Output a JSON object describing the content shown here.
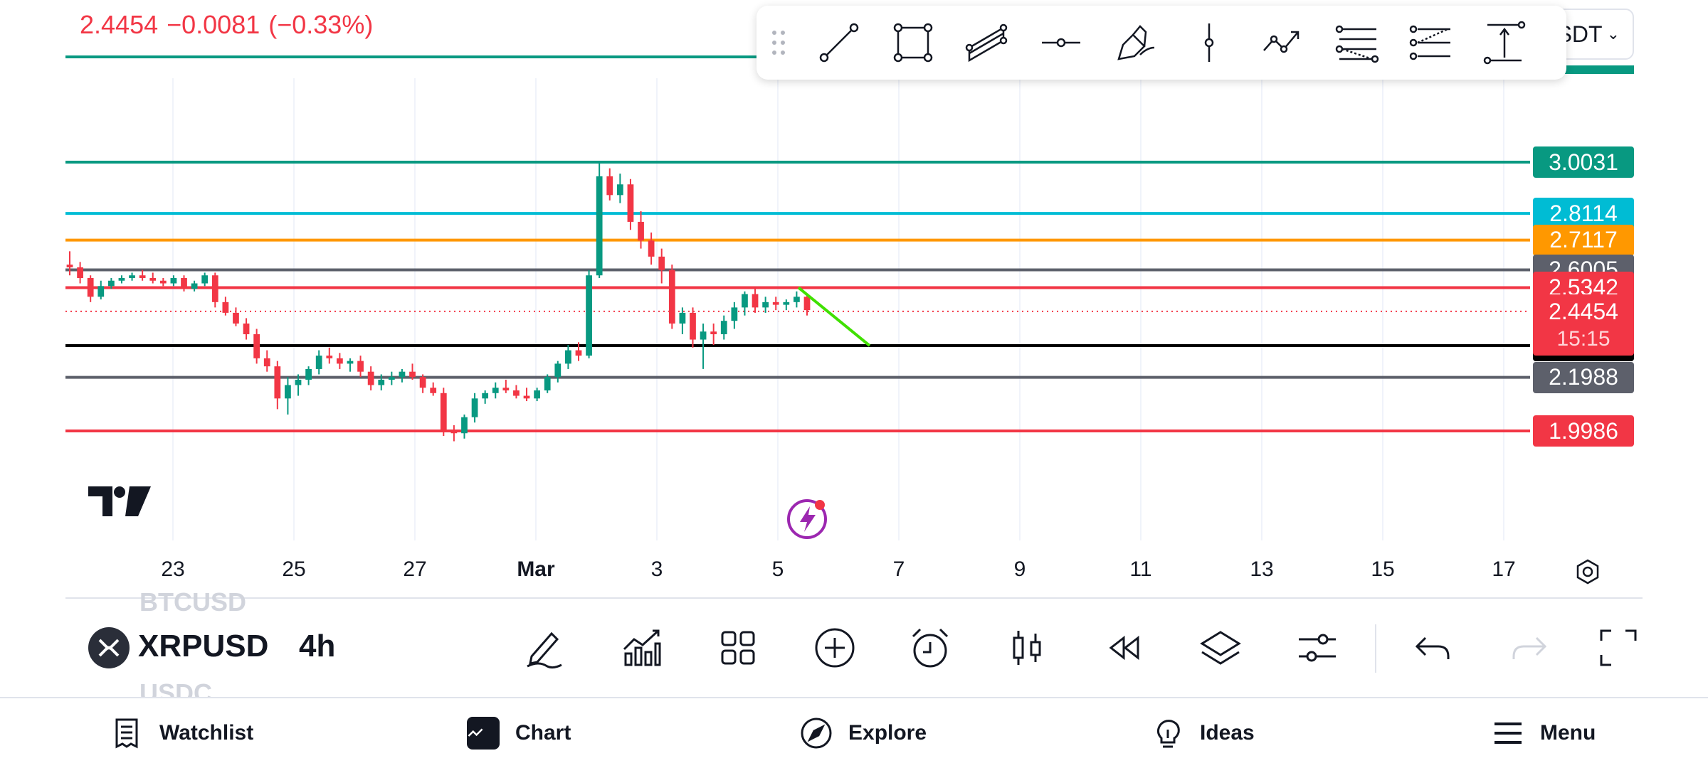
{
  "header": {
    "last_price": "2.4454",
    "change": "−0.0081",
    "change_pct": "(−0.33%)",
    "symbol_pill_text": "SDT",
    "accent_negative": "#f23645",
    "accent_positive": "#089981"
  },
  "drawing_toolbar": {
    "tools": [
      "trend-line-icon",
      "rectangle-icon",
      "parallel-channel-icon",
      "horizontal-ray-icon",
      "brush-icon",
      "vertical-line-icon",
      "path-icon",
      "fib-retracement-icon",
      "fib-extension-icon",
      "long-position-icon"
    ]
  },
  "chart_data": {
    "type": "candlestick",
    "symbol": "XRPUSD",
    "interval": "4h",
    "x_ticks": [
      "23",
      "25",
      "27",
      "Mar",
      "3",
      "5",
      "7",
      "9",
      "11",
      "13",
      "15",
      "17"
    ],
    "ylim": [
      1.85,
      3.1
    ],
    "current_price": "2.4454",
    "countdown": "15:15",
    "levels": [
      {
        "price": "3.0031",
        "value": 3.0031,
        "color": "#089981"
      },
      {
        "price": "2.8114",
        "value": 2.8114,
        "color": "#00bcd4"
      },
      {
        "price": "2.7117",
        "value": 2.7117,
        "color": "#ff9800"
      },
      {
        "price": "2.6005",
        "value": 2.6005,
        "color": "#5d606b"
      },
      {
        "price": "2.5342",
        "value": 2.5342,
        "color": "#f23645"
      },
      {
        "price": "2.3174",
        "value": 2.3174,
        "color": "#000000"
      },
      {
        "price": "2.1988",
        "value": 2.1988,
        "color": "#5d606b"
      },
      {
        "price": "1.9986",
        "value": 1.9986,
        "color": "#f23645"
      }
    ],
    "candles": [
      [
        2.62,
        2.67,
        2.58,
        2.61
      ],
      [
        2.61,
        2.63,
        2.55,
        2.57
      ],
      [
        2.57,
        2.58,
        2.48,
        2.5
      ],
      [
        2.5,
        2.56,
        2.49,
        2.54
      ],
      [
        2.54,
        2.57,
        2.53,
        2.56
      ],
      [
        2.56,
        2.58,
        2.55,
        2.57
      ],
      [
        2.57,
        2.59,
        2.56,
        2.58
      ],
      [
        2.58,
        2.6,
        2.56,
        2.57
      ],
      [
        2.57,
        2.59,
        2.55,
        2.56
      ],
      [
        2.56,
        2.57,
        2.54,
        2.55
      ],
      [
        2.55,
        2.58,
        2.54,
        2.57
      ],
      [
        2.57,
        2.58,
        2.52,
        2.53
      ],
      [
        2.53,
        2.56,
        2.52,
        2.55
      ],
      [
        2.55,
        2.59,
        2.54,
        2.58
      ],
      [
        2.58,
        2.59,
        2.46,
        2.48
      ],
      [
        2.48,
        2.5,
        2.43,
        2.44
      ],
      [
        2.44,
        2.46,
        2.39,
        2.4
      ],
      [
        2.4,
        2.42,
        2.34,
        2.36
      ],
      [
        2.36,
        2.38,
        2.25,
        2.27
      ],
      [
        2.27,
        2.3,
        2.22,
        2.24
      ],
      [
        2.24,
        2.26,
        2.08,
        2.12
      ],
      [
        2.12,
        2.2,
        2.06,
        2.17
      ],
      [
        2.17,
        2.21,
        2.13,
        2.19
      ],
      [
        2.19,
        2.24,
        2.17,
        2.23
      ],
      [
        2.23,
        2.3,
        2.21,
        2.28
      ],
      [
        2.28,
        2.31,
        2.25,
        2.27
      ],
      [
        2.27,
        2.29,
        2.23,
        2.25
      ],
      [
        2.25,
        2.27,
        2.22,
        2.26
      ],
      [
        2.26,
        2.28,
        2.2,
        2.22
      ],
      [
        2.22,
        2.24,
        2.15,
        2.17
      ],
      [
        2.17,
        2.21,
        2.15,
        2.19
      ],
      [
        2.19,
        2.22,
        2.17,
        2.2
      ],
      [
        2.2,
        2.23,
        2.18,
        2.22
      ],
      [
        2.22,
        2.25,
        2.19,
        2.2
      ],
      [
        2.2,
        2.21,
        2.14,
        2.16
      ],
      [
        2.16,
        2.18,
        2.13,
        2.14
      ],
      [
        2.14,
        2.16,
        1.98,
        2.0
      ],
      [
        2.0,
        2.02,
        1.96,
        1.99
      ],
      [
        1.99,
        2.06,
        1.97,
        2.05
      ],
      [
        2.05,
        2.14,
        2.03,
        2.12
      ],
      [
        2.12,
        2.15,
        2.1,
        2.14
      ],
      [
        2.14,
        2.18,
        2.12,
        2.16
      ],
      [
        2.16,
        2.19,
        2.14,
        2.15
      ],
      [
        2.15,
        2.17,
        2.12,
        2.13
      ],
      [
        2.13,
        2.16,
        2.11,
        2.12
      ],
      [
        2.12,
        2.16,
        2.11,
        2.15
      ],
      [
        2.15,
        2.21,
        2.14,
        2.2
      ],
      [
        2.2,
        2.26,
        2.18,
        2.25
      ],
      [
        2.25,
        2.32,
        2.23,
        2.3
      ],
      [
        2.3,
        2.33,
        2.26,
        2.28
      ],
      [
        2.28,
        2.6,
        2.27,
        2.58
      ],
      [
        2.58,
        3.0,
        2.57,
        2.95
      ],
      [
        2.95,
        2.98,
        2.86,
        2.88
      ],
      [
        2.88,
        2.96,
        2.85,
        2.92
      ],
      [
        2.92,
        2.94,
        2.75,
        2.78
      ],
      [
        2.78,
        2.82,
        2.68,
        2.71
      ],
      [
        2.71,
        2.74,
        2.62,
        2.65
      ],
      [
        2.65,
        2.68,
        2.55,
        2.6
      ],
      [
        2.6,
        2.62,
        2.38,
        2.4
      ],
      [
        2.4,
        2.46,
        2.36,
        2.44
      ],
      [
        2.44,
        2.46,
        2.31,
        2.34
      ],
      [
        2.34,
        2.4,
        2.23,
        2.37
      ],
      [
        2.37,
        2.4,
        2.32,
        2.36
      ],
      [
        2.36,
        2.43,
        2.34,
        2.41
      ],
      [
        2.41,
        2.48,
        2.38,
        2.46
      ],
      [
        2.46,
        2.52,
        2.43,
        2.51
      ],
      [
        2.51,
        2.53,
        2.44,
        2.46
      ],
      [
        2.46,
        2.5,
        2.44,
        2.48
      ],
      [
        2.48,
        2.5,
        2.45,
        2.47
      ],
      [
        2.47,
        2.49,
        2.45,
        2.48
      ],
      [
        2.48,
        2.52,
        2.46,
        2.5
      ],
      [
        2.5,
        2.51,
        2.43,
        2.45
      ]
    ],
    "trend_line": {
      "from_date_offset": 0,
      "color": "#40e000"
    }
  },
  "bottom_toolbar": {
    "symbol": "XRPUSD",
    "interval": "4h",
    "ghost_above": "BTCUSD",
    "ghost_below": "USDC"
  },
  "nav": {
    "watchlist": "Watchlist",
    "chart": "Chart",
    "explore": "Explore",
    "ideas": "Ideas",
    "menu": "Menu"
  }
}
